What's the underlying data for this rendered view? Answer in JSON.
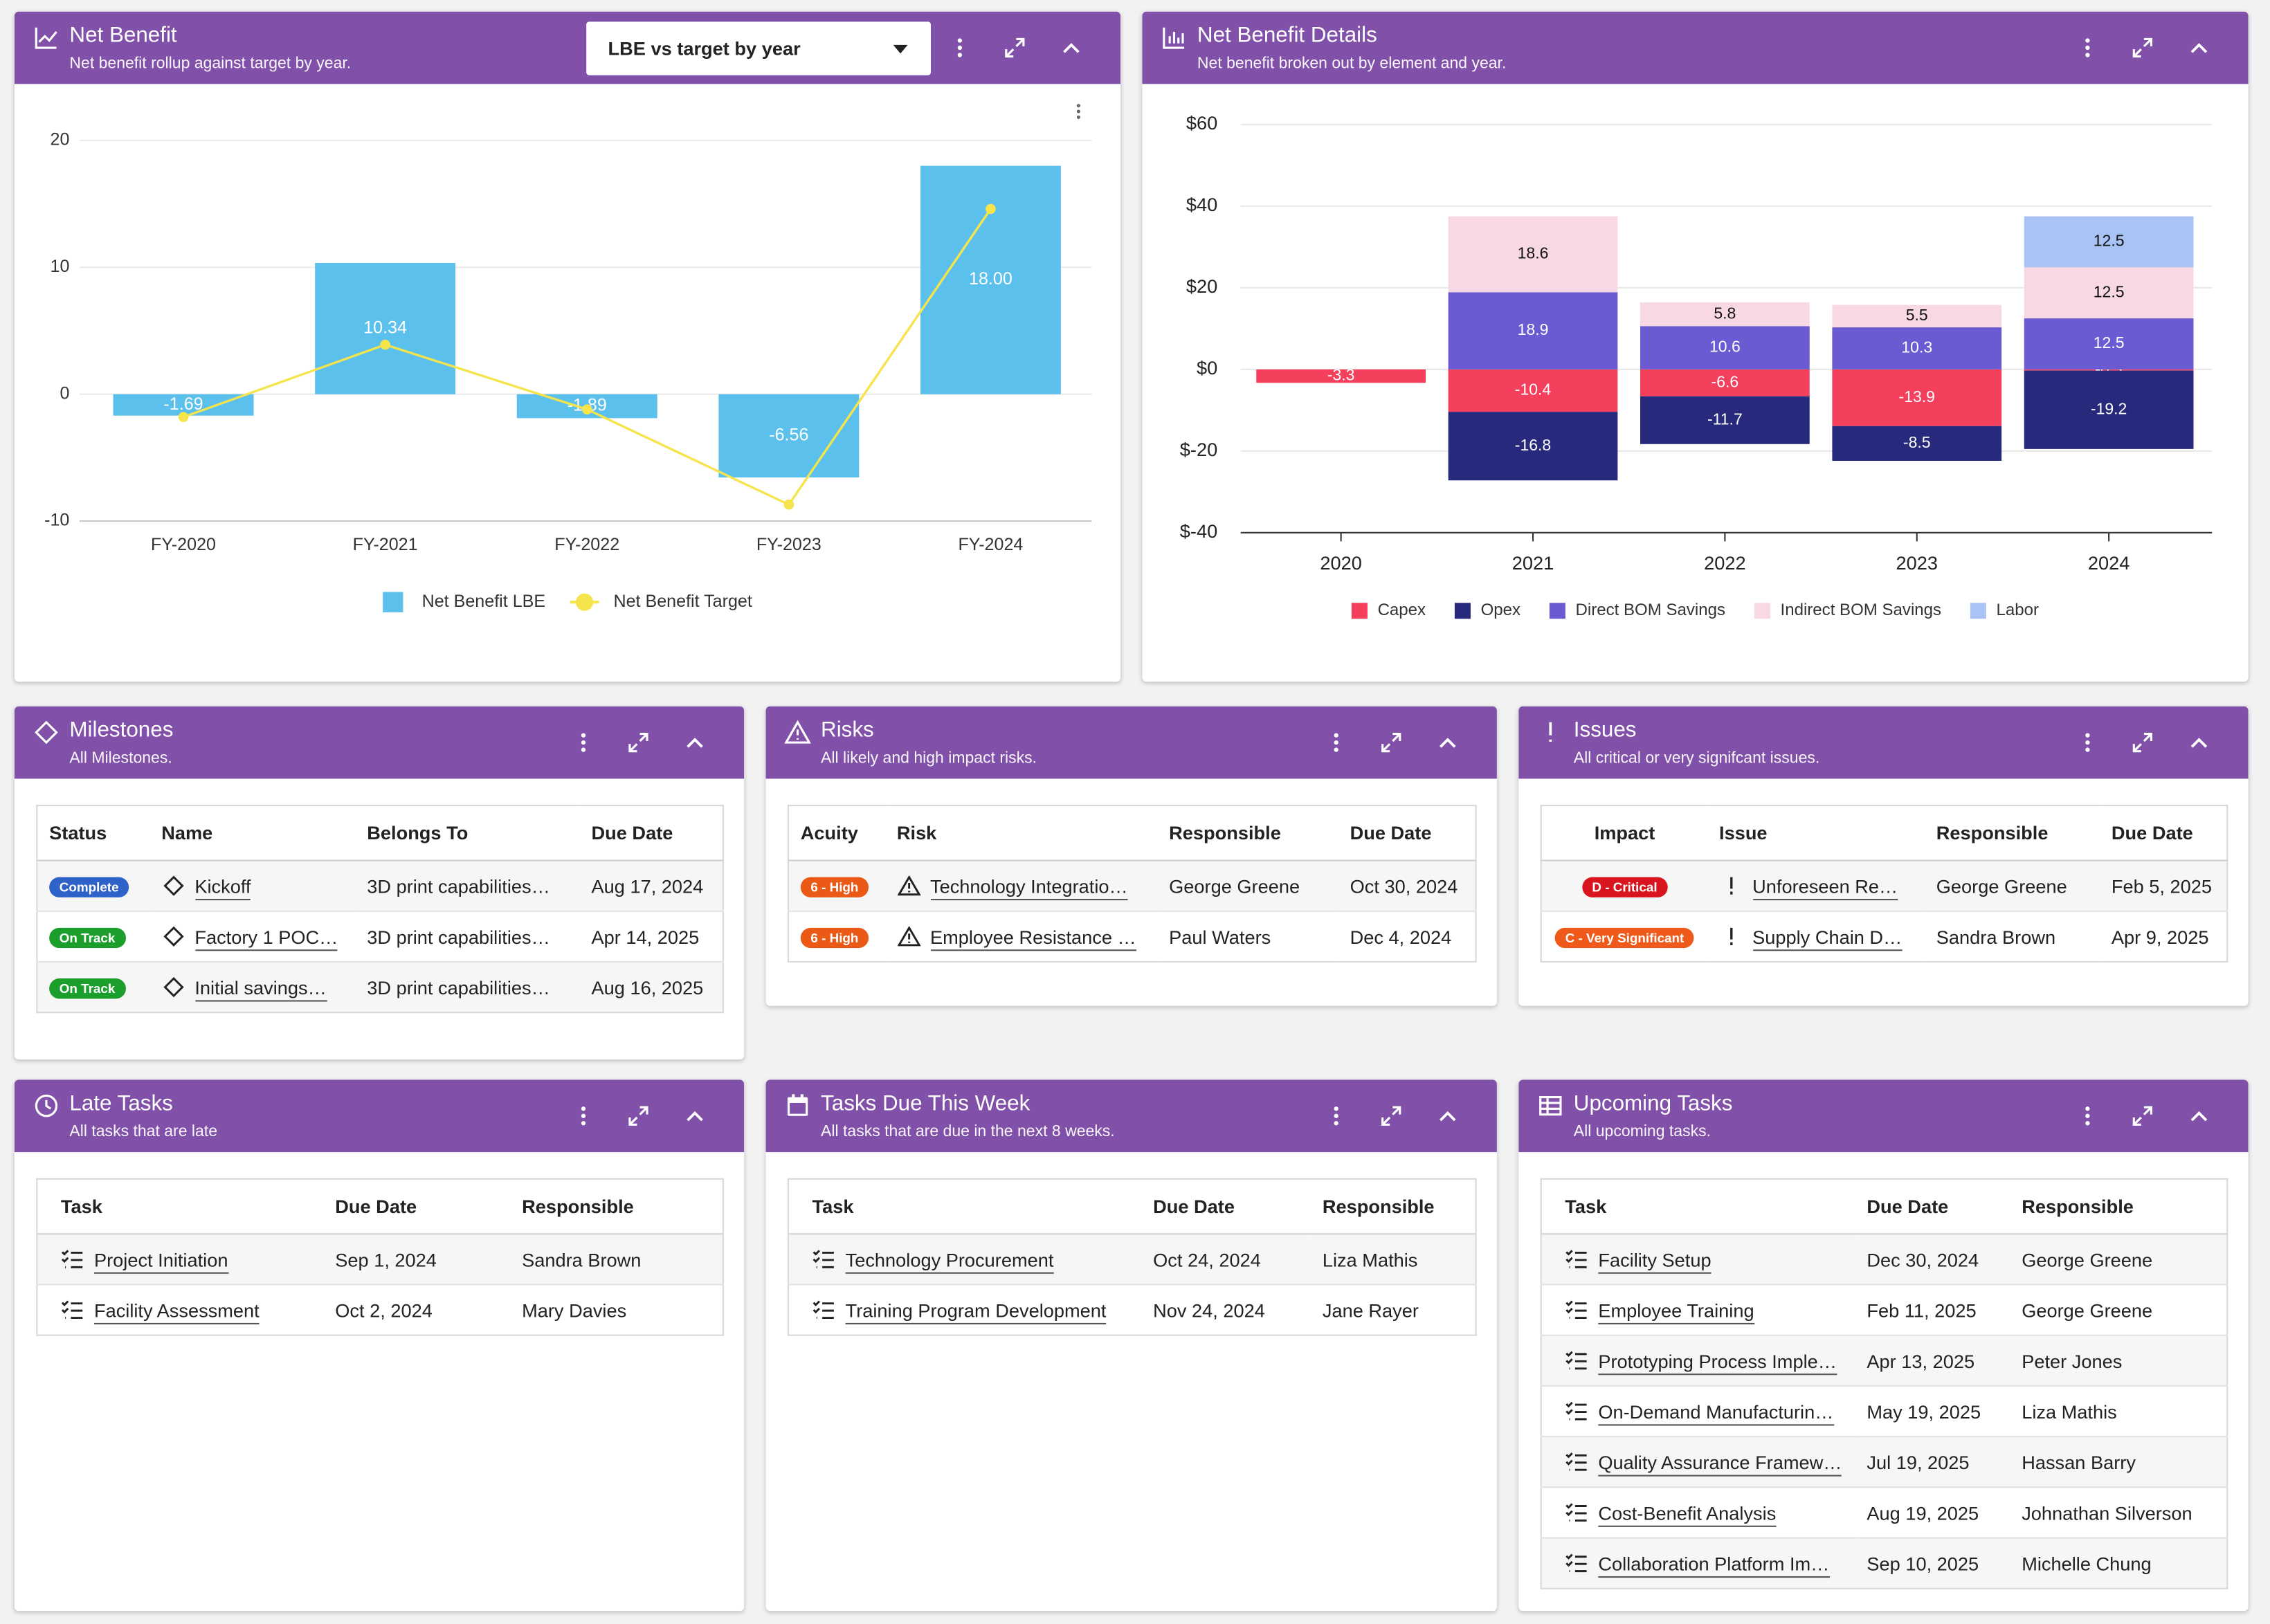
{
  "chart_data": [
    {
      "type": "bar",
      "title": "Net Benefit",
      "subtitle": "Net benefit rollup against target by year.",
      "categories": [
        "FY-2020",
        "FY-2021",
        "FY-2022",
        "FY-2023",
        "FY-2024"
      ],
      "series": [
        {
          "name": "Net Benefit LBE",
          "type": "bar",
          "color": "#5bc0ec",
          "values": [
            -1.69,
            10.34,
            -1.89,
            -6.56,
            18.0
          ],
          "value_labels": [
            "-1.69",
            "10.34",
            "-1.89",
            "-6.56",
            "18.00"
          ]
        },
        {
          "name": "Net Benefit Target",
          "type": "line",
          "color": "#f5e44c",
          "values": [
            -1.8,
            3.9,
            -1.2,
            -8.7,
            14.6
          ]
        }
      ],
      "ylim": [
        -10,
        20
      ],
      "yticks": [
        -10,
        0,
        10,
        20
      ],
      "grid": true,
      "legend": "bottom"
    },
    {
      "type": "stacked_bar",
      "title": "Net Benefit Details",
      "subtitle": "Net benefit broken out by element and year.",
      "categories": [
        "2020",
        "2021",
        "2022",
        "2023",
        "2024"
      ],
      "series": [
        {
          "name": "Capex",
          "color": "#f4405c",
          "values": [
            -3.3,
            -10.4,
            -6.6,
            -13.9,
            -0.3
          ]
        },
        {
          "name": "Opex",
          "color": "#272a7c",
          "values": [
            0,
            -16.8,
            -11.7,
            -8.5,
            -19.2
          ]
        },
        {
          "name": "Direct BOM Savings",
          "color": "#6b5bd2",
          "values": [
            0,
            18.9,
            10.6,
            10.3,
            12.5
          ]
        },
        {
          "name": "Indirect BOM Savings",
          "color": "#f8d8e4",
          "values": [
            0,
            18.6,
            5.8,
            5.5,
            12.5
          ]
        },
        {
          "name": "Labor",
          "color": "#a9c3f5",
          "values": [
            0,
            0,
            0,
            0,
            12.5
          ]
        }
      ],
      "ylim": [
        -40,
        60
      ],
      "yticks": [
        {
          "value": -40,
          "label": "$-40"
        },
        {
          "value": -20,
          "label": "$-20"
        },
        {
          "value": 0,
          "label": "$0"
        },
        {
          "value": 20,
          "label": "$20"
        },
        {
          "value": 40,
          "label": "$40"
        },
        {
          "value": 60,
          "label": "$60"
        }
      ],
      "grid": true,
      "legend": "bottom"
    }
  ],
  "dropdown": "LBE vs target by year",
  "panels": [
    {
      "title": "Milestones",
      "subtitle": "All Milestones.",
      "table": {
        "columns": [
          "Status",
          "Name",
          "Belongs To",
          "Due Date"
        ],
        "rows": [
          [
            "Complete",
            "Kickoff",
            "3D print capabilities…",
            "Aug 17, 2024"
          ],
          [
            "On Track",
            "Factory 1 POC…",
            "3D print capabilities…",
            "Apr 14, 2025"
          ],
          [
            "On Track",
            "Initial savings…",
            "3D print capabilities…",
            "Aug 16, 2025"
          ]
        ],
        "badge_colors": [
          "#2f62c8",
          "#1c9e2c",
          "#1c9e2c"
        ]
      }
    },
    {
      "title": "Risks",
      "subtitle": "All likely and high impact risks.",
      "table": {
        "columns": [
          "Acuity",
          "Risk",
          "Responsible",
          "Due Date"
        ],
        "rows": [
          [
            "6 - High",
            "Technology Integratio…",
            "George Greene",
            "Oct 30, 2024"
          ],
          [
            "6 - High",
            "Employee Resistance …",
            "Paul Waters",
            "Dec 4, 2024"
          ]
        ],
        "badge_colors": [
          "#ea5a16",
          "#ea5a16"
        ]
      }
    },
    {
      "title": "Issues",
      "subtitle": "All critical or very signifcant issues.",
      "table": {
        "columns": [
          "Impact",
          "Issue",
          "Responsible",
          "Due Date"
        ],
        "rows": [
          [
            "D - Critical",
            "Unforeseen Re…",
            "George Greene",
            "Feb 5, 2025"
          ],
          [
            "C - Very Significant",
            "Supply Chain D…",
            "Sandra Brown",
            "Apr 9, 2025"
          ]
        ],
        "badge_colors": [
          "#d8141e",
          "#ef5a1a"
        ]
      }
    },
    {
      "title": "Late Tasks",
      "subtitle": "All tasks that are late",
      "table": {
        "columns": [
          "Task",
          "Due Date",
          "Responsible"
        ],
        "rows": [
          [
            "Project Initiation",
            "Sep 1, 2024",
            "Sandra Brown"
          ],
          [
            "Facility Assessment",
            "Oct 2, 2024",
            "Mary Davies"
          ]
        ]
      }
    },
    {
      "title": "Tasks Due This Week",
      "subtitle": "All tasks that are due in the next 8 weeks.",
      "table": {
        "columns": [
          "Task",
          "Due Date",
          "Responsible"
        ],
        "rows": [
          [
            "Technology Procurement",
            "Oct 24, 2024",
            "Liza Mathis"
          ],
          [
            "Training Program Development",
            "Nov 24, 2024",
            "Jane Rayer"
          ]
        ]
      }
    },
    {
      "title": "Upcoming Tasks",
      "subtitle": "All upcoming tasks.",
      "table": {
        "columns": [
          "Task",
          "Due Date",
          "Responsible"
        ],
        "rows": [
          [
            "Facility Setup",
            "Dec 30, 2024",
            "George Greene"
          ],
          [
            "Employee Training",
            "Feb 11, 2025",
            "George Greene"
          ],
          [
            "Prototyping Process Imple…",
            "Apr 13, 2025",
            "Peter Jones"
          ],
          [
            "On-Demand Manufacturin…",
            "May 19, 2025",
            "Liza Mathis"
          ],
          [
            "Quality Assurance Framew…",
            "Jul 19, 2025",
            "Hassan Barry"
          ],
          [
            "Cost-Benefit Analysis",
            "Aug 19, 2025",
            "Johnathan Silverson"
          ],
          [
            "Collaboration Platform Im…",
            "Sep 10, 2025",
            "Michelle Chung"
          ]
        ]
      }
    }
  ]
}
